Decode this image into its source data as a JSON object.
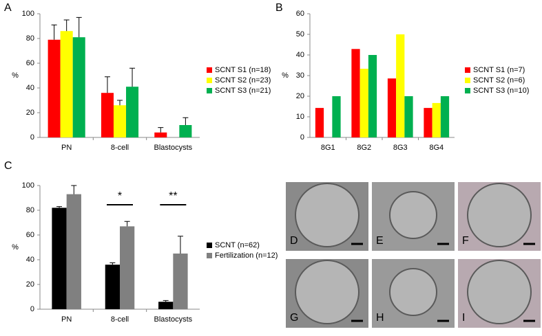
{
  "chart_data": [
    {
      "type": "bar",
      "panel": "A",
      "y_label": "%",
      "categories": [
        "PN",
        "8-cell",
        "Blastocysts"
      ],
      "series": [
        {
          "name": "SCNT S1 (n=18)",
          "color": "#ff0000",
          "values": [
            79,
            36,
            4
          ],
          "errors": [
            12,
            13,
            4
          ]
        },
        {
          "name": "SCNT S2 (n=23)",
          "color": "#ffff00",
          "values": [
            86,
            26,
            0
          ],
          "errors": [
            9,
            4,
            null
          ]
        },
        {
          "name": "SCNT S3 (n=21)",
          "color": "#00b050",
          "values": [
            81,
            41,
            10
          ],
          "errors": [
            16,
            15,
            6
          ]
        }
      ],
      "ylim": [
        0,
        100
      ],
      "yticks": [
        0,
        20,
        40,
        60,
        80,
        100
      ]
    },
    {
      "type": "bar",
      "panel": "B",
      "y_label": "%",
      "categories": [
        "8G1",
        "8G2",
        "8G3",
        "8G4"
      ],
      "series": [
        {
          "name": "SCNT S1 (n=7)",
          "color": "#ff0000",
          "values": [
            14.3,
            42.9,
            28.6,
            14.3
          ]
        },
        {
          "name": "SCNT S2 (n=6)",
          "color": "#ffff00",
          "values": [
            0,
            33.3,
            50,
            16.7
          ]
        },
        {
          "name": "SCNT S3 (n=10)",
          "color": "#00b050",
          "values": [
            20,
            40,
            20,
            20
          ]
        }
      ],
      "ylim": [
        0,
        60
      ],
      "yticks": [
        0,
        10,
        20,
        30,
        40,
        50,
        60
      ]
    },
    {
      "type": "bar",
      "panel": "C",
      "y_label": "%",
      "categories": [
        "PN",
        "8-cell",
        "Blastocysts"
      ],
      "series": [
        {
          "name": "SCNT (n=62)",
          "color": "#000000",
          "values": [
            82,
            36,
            6
          ],
          "errors": [
            1,
            1.5,
            1
          ]
        },
        {
          "name": "Fertilization (n=12)",
          "color": "#808080",
          "values": [
            93,
            67,
            45
          ],
          "errors": [
            7,
            4,
            14
          ]
        }
      ],
      "annotations": [
        "*",
        "**"
      ],
      "ylim": [
        0,
        100
      ],
      "yticks": [
        0,
        20,
        40,
        60,
        80,
        100
      ]
    }
  ],
  "micrographs": {
    "labels": [
      "D",
      "E",
      "F",
      "G",
      "H",
      "I"
    ]
  }
}
